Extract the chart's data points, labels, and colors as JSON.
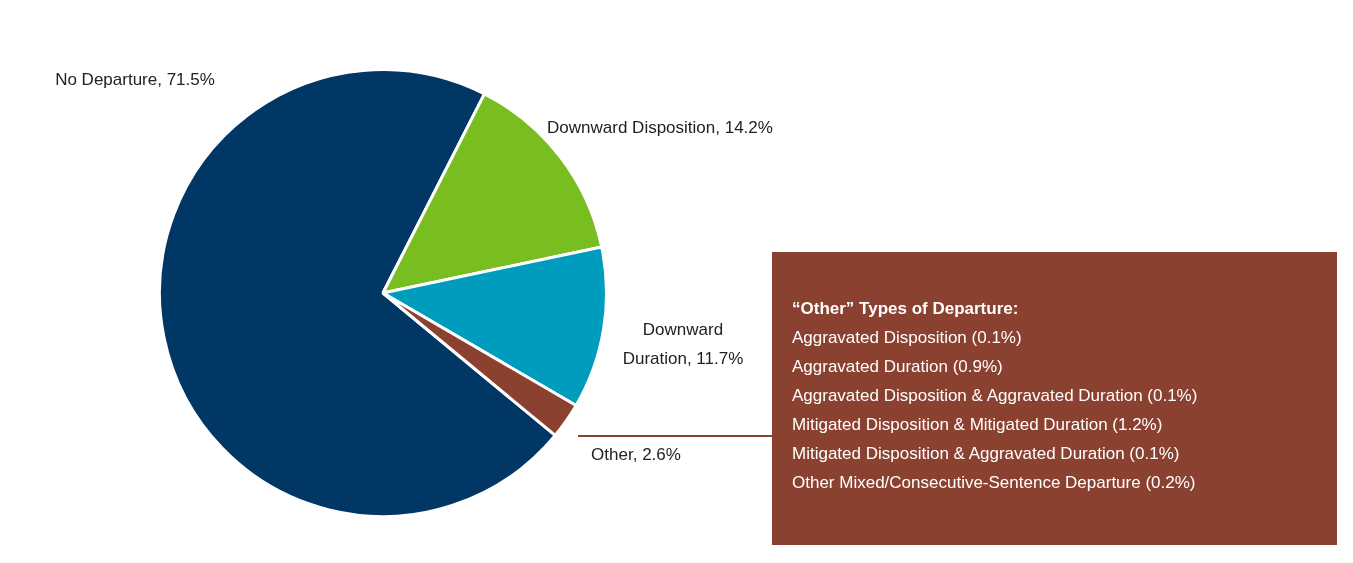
{
  "chart_data": {
    "type": "pie",
    "categories": [
      "No Departure",
      "Downward Disposition",
      "Downward Duration",
      "Other"
    ],
    "values": [
      71.5,
      14.2,
      11.7,
      2.6
    ],
    "value_labels": [
      "71.5%",
      "14.2%",
      "11.7%",
      "2.6%"
    ],
    "colors": [
      "#003764",
      "#78be20",
      "#009cbd",
      "#8b4130"
    ],
    "legend": false,
    "annotations": [
      "“Other” Types of Departure:",
      "Aggravated Disposition (0.1%)",
      "Aggravated Duration (0.9%)",
      "Aggravated Disposition & Aggravated Duration (0.1%)",
      "Mitigated Disposition & Mitigated Duration (1.2%)",
      "Mitigated Disposition & Aggravated Duration (0.1%)",
      "Other Mixed/Consecutive-Sentence Departure (0.2%)"
    ]
  }
}
